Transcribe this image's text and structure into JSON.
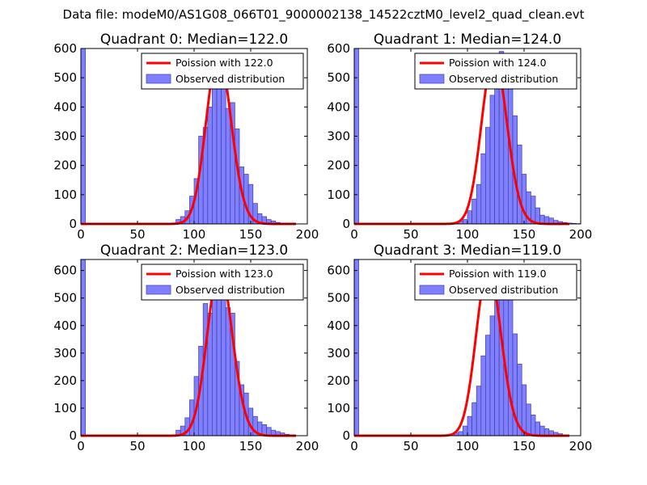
{
  "figure": {
    "suptitle": "Data file: modeM0/AS1G08_066T01_9000002138_14522cztM0_level2_quad_clean.evt",
    "colors": {
      "bar_fill": "#8080ff",
      "bar_edge": "#3c3cb0",
      "line": "#ff0000",
      "axis": "#000000",
      "legend_edge": "#000000",
      "background": "#ffffff"
    }
  },
  "chart_data": [
    {
      "type": "bar",
      "title": "Quadrant 0: Median=122.0",
      "xlim": [
        0,
        200
      ],
      "ylim": [
        0,
        600
      ],
      "xticks": [
        0,
        50,
        100,
        150,
        200
      ],
      "yticks": [
        0,
        100,
        200,
        300,
        400,
        500,
        600
      ],
      "legend_position": "upper-right",
      "legend": [
        "Poission with 122.0",
        "Observed distribution"
      ],
      "median": 122.0,
      "bin_edges": [
        0,
        4,
        8,
        12,
        16,
        20,
        24,
        28,
        32,
        36,
        40,
        44,
        48,
        52,
        56,
        60,
        64,
        68,
        72,
        76,
        80,
        84,
        88,
        92,
        96,
        100,
        104,
        108,
        112,
        116,
        120,
        124,
        128,
        132,
        136,
        140,
        144,
        148,
        152,
        156,
        160,
        164,
        168,
        172,
        176,
        180,
        184,
        188
      ],
      "counts": [
        600,
        0,
        0,
        0,
        0,
        0,
        0,
        0,
        0,
        0,
        0,
        0,
        0,
        0,
        0,
        0,
        0,
        0,
        0,
        0,
        0,
        15,
        25,
        45,
        95,
        155,
        300,
        330,
        400,
        540,
        485,
        520,
        395,
        415,
        325,
        195,
        170,
        135,
        70,
        35,
        25,
        15,
        10,
        5,
        3,
        2,
        1
      ],
      "poisson_mean": 122.0,
      "poisson_peak": 580
    },
    {
      "type": "bar",
      "title": "Quadrant 1: Median=124.0",
      "xlim": [
        0,
        200
      ],
      "ylim": [
        0,
        600
      ],
      "xticks": [
        0,
        50,
        100,
        150,
        200
      ],
      "yticks": [
        0,
        100,
        200,
        300,
        400,
        500,
        600
      ],
      "legend_position": "upper-right",
      "legend": [
        "Poission with 124.0",
        "Observed distribution"
      ],
      "median": 124.0,
      "bin_edges": [
        0,
        4,
        8,
        12,
        16,
        20,
        24,
        28,
        32,
        36,
        40,
        44,
        48,
        52,
        56,
        60,
        64,
        68,
        72,
        76,
        80,
        84,
        88,
        92,
        96,
        100,
        104,
        108,
        112,
        116,
        120,
        124,
        128,
        132,
        136,
        140,
        144,
        148,
        152,
        156,
        160,
        164,
        168,
        172,
        176,
        180,
        184,
        188,
        192,
        196
      ],
      "counts": [
        600,
        0,
        0,
        0,
        0,
        0,
        0,
        0,
        0,
        0,
        0,
        0,
        0,
        0,
        0,
        0,
        0,
        0,
        0,
        0,
        0,
        0,
        0,
        10,
        15,
        45,
        85,
        135,
        240,
        330,
        440,
        570,
        590,
        510,
        470,
        370,
        270,
        170,
        110,
        95,
        55,
        30,
        25,
        20,
        12,
        8,
        5,
        3,
        2,
        1
      ],
      "poisson_mean": 124.0,
      "poisson_peak": 575
    },
    {
      "type": "bar",
      "title": "Quadrant 2: Median=123.0",
      "xlim": [
        0,
        200
      ],
      "ylim": [
        0,
        640
      ],
      "xticks": [
        0,
        50,
        100,
        150,
        200
      ],
      "yticks": [
        0,
        100,
        200,
        300,
        400,
        500,
        600
      ],
      "legend_position": "upper-right",
      "legend": [
        "Poission with 123.0",
        "Observed distribution"
      ],
      "median": 123.0,
      "bin_edges": [
        0,
        4,
        8,
        12,
        16,
        20,
        24,
        28,
        32,
        36,
        40,
        44,
        48,
        52,
        56,
        60,
        64,
        68,
        72,
        76,
        80,
        84,
        88,
        92,
        96,
        100,
        104,
        108,
        112,
        116,
        120,
        124,
        128,
        132,
        136,
        140,
        144,
        148,
        152,
        156,
        160,
        164,
        168,
        172,
        176,
        180,
        184
      ],
      "counts": [
        640,
        0,
        0,
        0,
        0,
        0,
        0,
        0,
        0,
        0,
        0,
        0,
        0,
        0,
        0,
        0,
        0,
        0,
        0,
        0,
        0,
        20,
        35,
        65,
        130,
        215,
        325,
        480,
        445,
        575,
        610,
        535,
        465,
        445,
        270,
        185,
        155,
        100,
        70,
        50,
        40,
        30,
        20,
        15,
        10,
        5
      ],
      "poisson_mean": 123.0,
      "poisson_peak": 605
    },
    {
      "type": "bar",
      "title": "Quadrant 3: Median=119.0",
      "xlim": [
        0,
        200
      ],
      "ylim": [
        0,
        640
      ],
      "xticks": [
        0,
        50,
        100,
        150,
        200
      ],
      "yticks": [
        0,
        100,
        200,
        300,
        400,
        500,
        600
      ],
      "legend_position": "upper-right",
      "legend": [
        "Poission with 119.0",
        "Observed distribution"
      ],
      "median": 119.0,
      "bin_edges": [
        0,
        4,
        8,
        12,
        16,
        20,
        24,
        28,
        32,
        36,
        40,
        44,
        48,
        52,
        56,
        60,
        64,
        68,
        72,
        76,
        80,
        84,
        88,
        92,
        96,
        100,
        104,
        108,
        112,
        116,
        120,
        124,
        128,
        132,
        136,
        140,
        144,
        148,
        152,
        156,
        160,
        164,
        168,
        172,
        176,
        180,
        184,
        188
      ],
      "counts": [
        640,
        0,
        0,
        0,
        0,
        0,
        0,
        0,
        0,
        0,
        0,
        0,
        0,
        0,
        0,
        0,
        0,
        0,
        0,
        0,
        0,
        0,
        10,
        15,
        35,
        70,
        120,
        180,
        290,
        365,
        435,
        610,
        580,
        560,
        535,
        370,
        260,
        185,
        115,
        75,
        50,
        35,
        25,
        18,
        12,
        7,
        3
      ],
      "poisson_mean": 119.0,
      "poisson_peak": 610
    }
  ]
}
